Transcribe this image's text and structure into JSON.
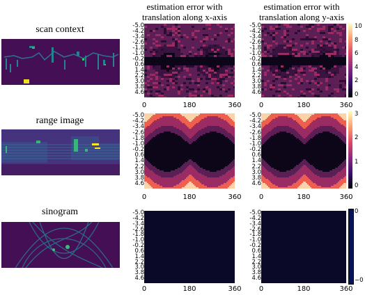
{
  "rows": [
    {
      "title": "scan context"
    },
    {
      "title": "range image"
    },
    {
      "title": "sinogram"
    }
  ],
  "columns": [
    {
      "title_line1": "estimation error with",
      "title_line2": "translation along x-axis"
    },
    {
      "title_line1": "estimation error with",
      "title_line2": "translation along y-axis"
    }
  ],
  "y_ticks": [
    "-5.0",
    "-4.2",
    "-3.4",
    "-2.6",
    "-1.8",
    "-1.0",
    "-0.2",
    "0.6",
    "1.4",
    "2.2",
    "3.0",
    "3.8",
    "4.6"
  ],
  "x_ticks": [
    "0",
    "180",
    "360"
  ],
  "colorbars": [
    {
      "ticks": [
        "10",
        "8",
        "6",
        "4",
        "2",
        "0"
      ],
      "colormap": "magma"
    },
    {
      "ticks": [
        "3",
        "2",
        "1",
        "0"
      ],
      "colormap": "magma"
    },
    {
      "ticks": [
        "0",
        "−0"
      ],
      "colormap": "navy"
    }
  ],
  "colors": {
    "dark": "#0c0618",
    "plum": "#5b1e55",
    "magenta": "#9b2b63",
    "salmon": "#ee5f4f",
    "light": "#fcd3a9",
    "viridis_bg": "#440f55",
    "sino_bg": "#0a0a28"
  }
}
